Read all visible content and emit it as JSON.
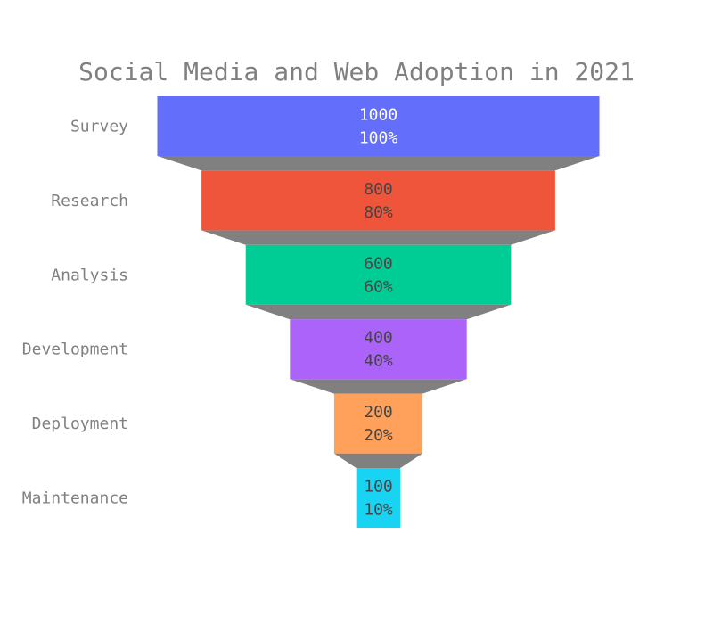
{
  "chart_data": {
    "type": "funnel",
    "title": "Social Media and Web Adoption in 2021",
    "stages": [
      "Survey",
      "Research",
      "Analysis",
      "Development",
      "Deployment",
      "Maintenance"
    ],
    "values": [
      1000,
      800,
      600,
      400,
      200,
      100
    ],
    "percent_labels": [
      "100%",
      "80%",
      "60%",
      "40%",
      "20%",
      "10%"
    ],
    "colors": [
      "#636efa",
      "#ef553b",
      "#00cc96",
      "#ab63fa",
      "#ffa15a",
      "#19d3f3"
    ],
    "connector_color": "#808080",
    "text_colors": [
      "#ffffff",
      "#444444",
      "#444444",
      "#444444",
      "#444444",
      "#444444"
    ],
    "title_color": "#808080",
    "label_color": "#808080"
  }
}
